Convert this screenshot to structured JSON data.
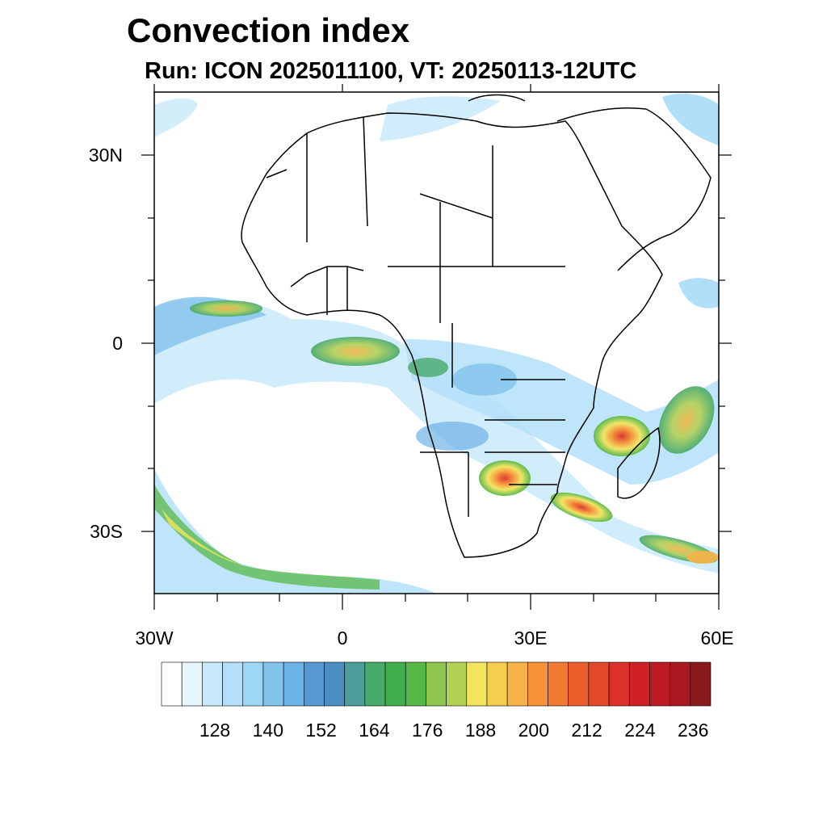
{
  "title": "Convection index",
  "subtitle": "Run: ICON 2025011100,  VT: 20250113-12UTC",
  "map": {
    "lon_range": [
      -30,
      60
    ],
    "lat_range": [
      -40,
      40
    ],
    "lat_labels": [
      "30N",
      "0",
      "30S"
    ],
    "lon_labels": [
      "30W",
      "0",
      "30E",
      "60E"
    ]
  },
  "colorbar": {
    "labels": [
      "128",
      "140",
      "152",
      "164",
      "176",
      "188",
      "200",
      "212",
      "224",
      "236"
    ],
    "colors": [
      "#ffffff",
      "#e6f5fd",
      "#c9e9fa",
      "#b3e0f8",
      "#9dd7f6",
      "#82c3ec",
      "#6db2e6",
      "#5599d0",
      "#4a8fbf",
      "#4b9e9a",
      "#47a96a",
      "#3fae4b",
      "#58b847",
      "#8fc64d",
      "#b3d155",
      "#f2e55e",
      "#f7cd4e",
      "#f7b347",
      "#f69336",
      "#f27a30",
      "#ec5f2c",
      "#e44a2a",
      "#dc3029",
      "#cf2026",
      "#bd1a26",
      "#aa1820",
      "#8c1a1a"
    ]
  }
}
